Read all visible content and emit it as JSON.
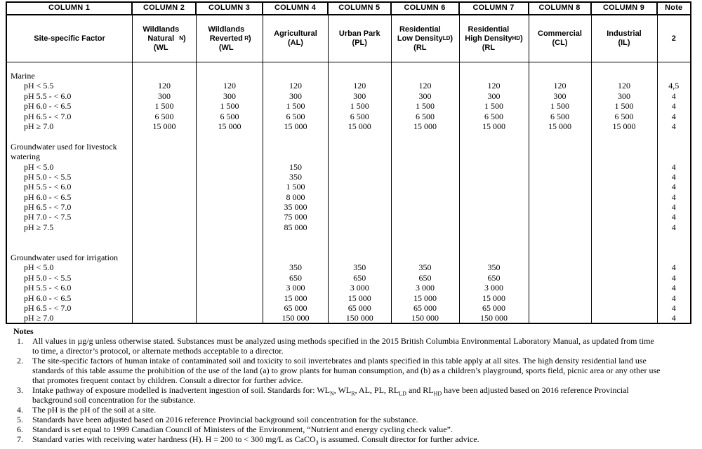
{
  "table": {
    "columns": [
      {
        "id": "site-factor",
        "header": "COLUMN 1",
        "label_html": "Site-specific Factor"
      },
      {
        "id": "wln",
        "header": "COLUMN 2",
        "label_html": "Wildlands<br>Natural<br>(WL<sub>N</sub>)"
      },
      {
        "id": "wlr",
        "header": "COLUMN 3",
        "label_html": "Wildlands<br>Reverted<br>(WL<sub>R</sub>)"
      },
      {
        "id": "al",
        "header": "COLUMN 4",
        "label_html": "Agricultural<br>(AL)"
      },
      {
        "id": "pl",
        "header": "COLUMN 5",
        "label_html": "Urban Park<br>(PL)"
      },
      {
        "id": "rlld",
        "header": "COLUMN 6",
        "label_html": "Residential<br>Low Density<br>(RL<sub>LD</sub>)"
      },
      {
        "id": "rlhd",
        "header": "COLUMN 7",
        "label_html": "Residential<br>High Density<br>(RL<sub>HD</sub>)"
      },
      {
        "id": "cl",
        "header": "COLUMN 8",
        "label_html": "Commercial<br>(CL)"
      },
      {
        "id": "il",
        "header": "COLUMN 9",
        "label_html": "Industrial<br>(IL)"
      },
      {
        "id": "note",
        "header": "Note",
        "label_html": "2"
      }
    ],
    "rows": [
      {
        "kind": "section",
        "label": "Marine",
        "values": [
          "",
          "",
          "",
          "",
          "",
          "",
          "",
          ""
        ],
        "note": ""
      },
      {
        "kind": "ph",
        "label": "pH < 5.5",
        "values": [
          "120",
          "120",
          "120",
          "120",
          "120",
          "120",
          "120",
          "120"
        ],
        "note": "4,5"
      },
      {
        "kind": "ph",
        "label": "pH 5.5 - < 6.0",
        "values": [
          "300",
          "300",
          "300",
          "300",
          "300",
          "300",
          "300",
          "300"
        ],
        "note": "4"
      },
      {
        "kind": "ph",
        "label": "pH 6.0 - < 6.5",
        "values": [
          "1 500",
          "1 500",
          "1 500",
          "1 500",
          "1 500",
          "1 500",
          "1 500",
          "1 500"
        ],
        "note": "4"
      },
      {
        "kind": "ph",
        "label": "pH 6.5 - < 7.0",
        "values": [
          "6 500",
          "6 500",
          "6 500",
          "6 500",
          "6 500",
          "6 500",
          "6 500",
          "6 500"
        ],
        "note": "4"
      },
      {
        "kind": "ph",
        "label": "pH ≥ 7.0",
        "values": [
          "15 000",
          "15 000",
          "15 000",
          "15 000",
          "15 000",
          "15 000",
          "15 000",
          "15 000"
        ],
        "note": "4"
      },
      {
        "kind": "spacer",
        "label": "",
        "values": [
          "",
          "",
          "",
          "",
          "",
          "",
          "",
          ""
        ],
        "note": ""
      },
      {
        "kind": "section",
        "label": "Groundwater used for livestock",
        "values": [
          "",
          "",
          "",
          "",
          "",
          "",
          "",
          ""
        ],
        "note": ""
      },
      {
        "kind": "section-cont",
        "label": "watering",
        "values": [
          "",
          "",
          "",
          "",
          "",
          "",
          "",
          ""
        ],
        "note": ""
      },
      {
        "kind": "ph",
        "label": "pH < 5.0",
        "values": [
          "",
          "",
          "150",
          "",
          "",
          "",
          "",
          ""
        ],
        "note": "4"
      },
      {
        "kind": "ph",
        "label": "pH 5.0 - < 5.5",
        "values": [
          "",
          "",
          "350",
          "",
          "",
          "",
          "",
          ""
        ],
        "note": "4"
      },
      {
        "kind": "ph",
        "label": "pH 5.5 - < 6.0",
        "values": [
          "",
          "",
          "1 500",
          "",
          "",
          "",
          "",
          ""
        ],
        "note": "4"
      },
      {
        "kind": "ph",
        "label": "pH 6.0 - < 6.5",
        "values": [
          "",
          "",
          "8 000",
          "",
          "",
          "",
          "",
          ""
        ],
        "note": "4"
      },
      {
        "kind": "ph",
        "label": "pH 6.5 - < 7.0",
        "values": [
          "",
          "",
          "35 000",
          "",
          "",
          "",
          "",
          ""
        ],
        "note": "4"
      },
      {
        "kind": "ph",
        "label": "pH 7.0 - < 7.5",
        "values": [
          "",
          "",
          "75 000",
          "",
          "",
          "",
          "",
          ""
        ],
        "note": "4"
      },
      {
        "kind": "ph",
        "label": "pH ≥ 7.5",
        "values": [
          "",
          "",
          "85 000",
          "",
          "",
          "",
          "",
          ""
        ],
        "note": "4"
      },
      {
        "kind": "spacer",
        "label": "",
        "values": [
          "",
          "",
          "",
          "",
          "",
          "",
          "",
          ""
        ],
        "note": ""
      },
      {
        "kind": "spacer",
        "label": "",
        "values": [
          "",
          "",
          "",
          "",
          "",
          "",
          "",
          ""
        ],
        "note": ""
      },
      {
        "kind": "section",
        "label": "Groundwater used for irrigation",
        "values": [
          "",
          "",
          "",
          "",
          "",
          "",
          "",
          ""
        ],
        "note": ""
      },
      {
        "kind": "ph",
        "label": "pH < 5.0",
        "values": [
          "",
          "",
          "350",
          "350",
          "350",
          "350",
          "",
          ""
        ],
        "note": "4"
      },
      {
        "kind": "ph",
        "label": "pH 5.0 - < 5.5",
        "values": [
          "",
          "",
          "650",
          "650",
          "650",
          "650",
          "",
          ""
        ],
        "note": "4"
      },
      {
        "kind": "ph",
        "label": "pH 5.5 - < 6.0",
        "values": [
          "",
          "",
          "3 000",
          "3 000",
          "3 000",
          "3 000",
          "",
          ""
        ],
        "note": "4"
      },
      {
        "kind": "ph",
        "label": "pH 6.0 - < 6.5",
        "values": [
          "",
          "",
          "15 000",
          "15 000",
          "15 000",
          "15 000",
          "",
          ""
        ],
        "note": "4"
      },
      {
        "kind": "ph",
        "label": "pH 6.5 - < 7.0",
        "values": [
          "",
          "",
          "65 000",
          "65 000",
          "65 000",
          "65 000",
          "",
          ""
        ],
        "note": "4"
      },
      {
        "kind": "ph",
        "label": "pH ≥ 7.0",
        "values": [
          "",
          "",
          "150 000",
          "150 000",
          "150 000",
          "150 000",
          "",
          ""
        ],
        "note": "4"
      }
    ]
  },
  "notes": {
    "title": "Notes",
    "items": [
      {
        "num": "1.",
        "text_html": "All values in µg/g unless otherwise stated.  Substances must be analyzed using methods specified in the 2015 British Columbia Environmental Laboratory Manual, as updated from time to time, a director’s protocol, or alternate methods acceptable to a director."
      },
      {
        "num": "2.",
        "text_html": "The site-specific factors of human intake of contaminated soil and toxicity to soil invertebrates and plants specified in this table apply at all sites. The high density residential land use standards of this table assume the prohibition of the use of the land (a) to grow plants for human consumption, and (b) as a children’s playground, sports field, picnic area or any other use that promotes frequent contact by children. Consult a director for further advice."
      },
      {
        "num": "3.",
        "text_html": "Intake pathway of exposure modelled is inadvertent ingestion of soil. Standards for: WL<sub>N</sub>, WL<sub>R</sub>, AL, PL, RL<sub>LD</sub> and RL<sub>HD</sub> have been adjusted based on 2016 reference Provincial background soil concentration for the substance."
      },
      {
        "num": "4.",
        "text_html": "The pH is the pH of the soil at a site."
      },
      {
        "num": "5.",
        "text_html": "Standards have been adjusted based on 2016 reference Provincial background soil concentration for the substance."
      },
      {
        "num": "6.",
        "text_html": "Standard is set equal to 1999 Canadian Council of Ministers of the Environment, “Nutrient and energy cycling check value”."
      },
      {
        "num": "7.",
        "text_html": "Standard varies with receiving water hardness (H). H = 200 to &lt; 300 mg/L as CaCO<sub>3</sub> is assumed.  Consult director for further advice."
      }
    ]
  }
}
